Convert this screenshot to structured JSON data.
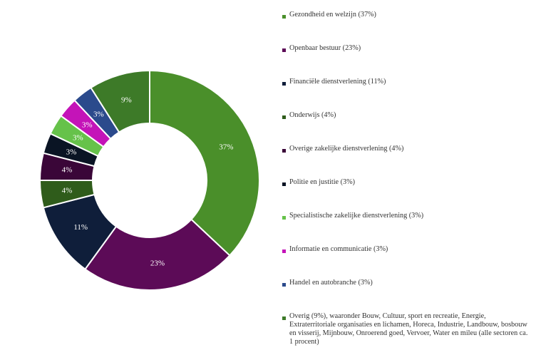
{
  "chart_data": {
    "type": "pie",
    "title": "",
    "donut": true,
    "legend_position": "right",
    "slices": [
      {
        "name": "Gezondheid en welzijn (37%)",
        "value": 37,
        "label": "37%",
        "color": "#4a8f2a"
      },
      {
        "name": "Openbaar bestuur (23%)",
        "value": 23,
        "label": "23%",
        "color": "#5c0b57"
      },
      {
        "name": "Financiële dienstverlening (11%)",
        "value": 11,
        "label": "11%",
        "color": "#0f1e3a"
      },
      {
        "name": "Onderwijs (4%)",
        "value": 4,
        "label": "4%",
        "color": "#2f5c1b"
      },
      {
        "name": "Overige zakelijke dienstverlening (4%)",
        "value": 4,
        "label": "4%",
        "color": "#3a0638"
      },
      {
        "name": "Politie en justitie (3%)",
        "value": 3,
        "label": "3%",
        "color": "#0a1424"
      },
      {
        "name": "Specialistische zakelijke dienstverlening (3%)",
        "value": 3,
        "label": "3%",
        "color": "#66c24a"
      },
      {
        "name": "Informatie en communicatie (3%)",
        "value": 3,
        "label": "3%",
        "color": "#c414b8"
      },
      {
        "name": "Handel en autobranche (3%)",
        "value": 3,
        "label": "3%",
        "color": "#2b4a8c"
      },
      {
        "name": "Overig (9%), waaronder Bouw, Cultuur, sport en recreatie, Energie, Extraterritoriale organisaties en lichamen, Horeca, Industrie, Landbouw, bosbouw en visserij, Mijnbouw, Onroerend goed, Vervoer, Water en mileu (alle sectoren ca. 1 procent)",
        "value": 9,
        "label": "9%",
        "color": "#3d7a28"
      }
    ]
  }
}
